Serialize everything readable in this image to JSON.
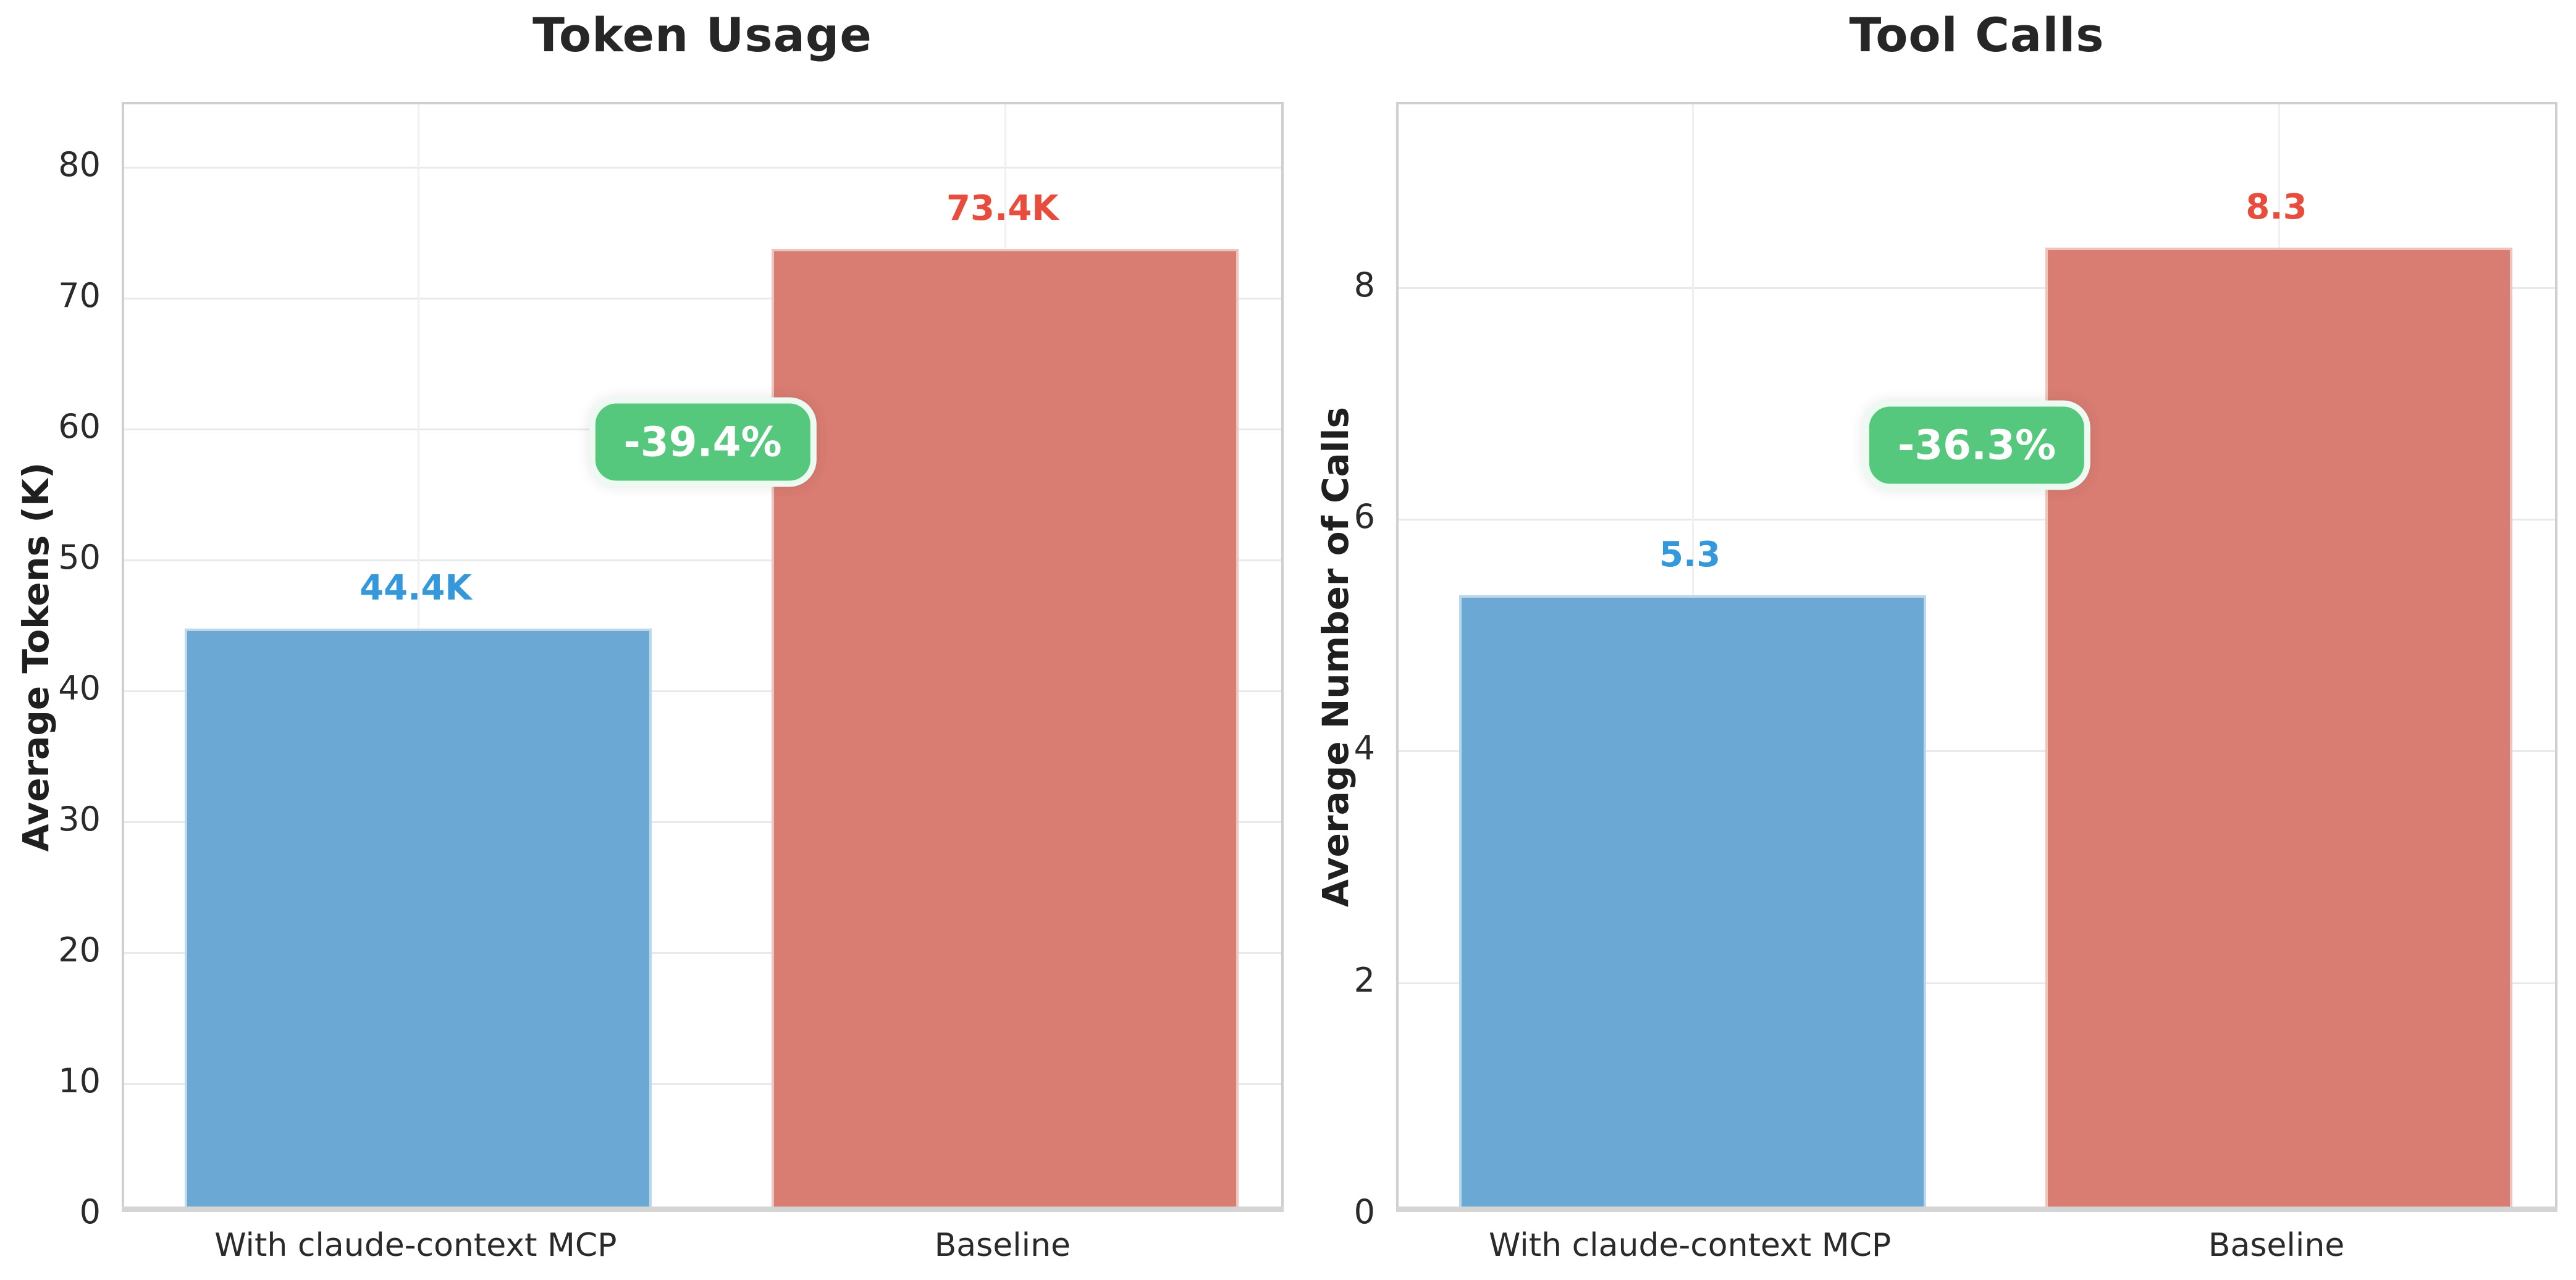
{
  "page": {
    "background": "#ffffff",
    "grid_color": "#e9e9e9",
    "spine_color": "#cfcfcf",
    "title_color": "#262626",
    "tick_color": "#2a2a2a",
    "badge_bg": "#55c87d",
    "badge_border": "#ecfaf1",
    "badge_text_color": "#ffffff"
  },
  "chart_data": [
    {
      "type": "bar",
      "title": "Token Usage",
      "ylabel": "Average Tokens (K)",
      "xlabel": "",
      "categories": [
        "With claude-context MCP",
        "Baseline"
      ],
      "values": [
        44.4,
        73.4
      ],
      "value_labels": [
        "44.4K",
        "73.4K"
      ],
      "bar_colors": [
        "#6ba8d4",
        "#d97c72"
      ],
      "label_colors": [
        "#3498db",
        "#e74c3c"
      ],
      "yticks": [
        0,
        10,
        20,
        30,
        40,
        50,
        60,
        70,
        80
      ],
      "ylim": [
        0,
        84.8
      ],
      "grid": true,
      "legend": "none",
      "annotation": {
        "text": "-39.4%",
        "x_frac": 0.5,
        "y_value": 58.8
      }
    },
    {
      "type": "bar",
      "title": "Tool Calls",
      "ylabel": "Average Number of Calls",
      "xlabel": "",
      "categories": [
        "With claude-context MCP",
        "Baseline"
      ],
      "values": [
        5.3,
        8.3
      ],
      "value_labels": [
        "5.3",
        "8.3"
      ],
      "bar_colors": [
        "#6ba8d4",
        "#d97c72"
      ],
      "label_colors": [
        "#3498db",
        "#e74c3c"
      ],
      "yticks": [
        0,
        2,
        4,
        6,
        8
      ],
      "ylim": [
        0,
        9.58
      ],
      "grid": true,
      "legend": "none",
      "annotation": {
        "text": "-36.3%",
        "x_frac": 0.5,
        "y_value": 6.62
      }
    }
  ]
}
